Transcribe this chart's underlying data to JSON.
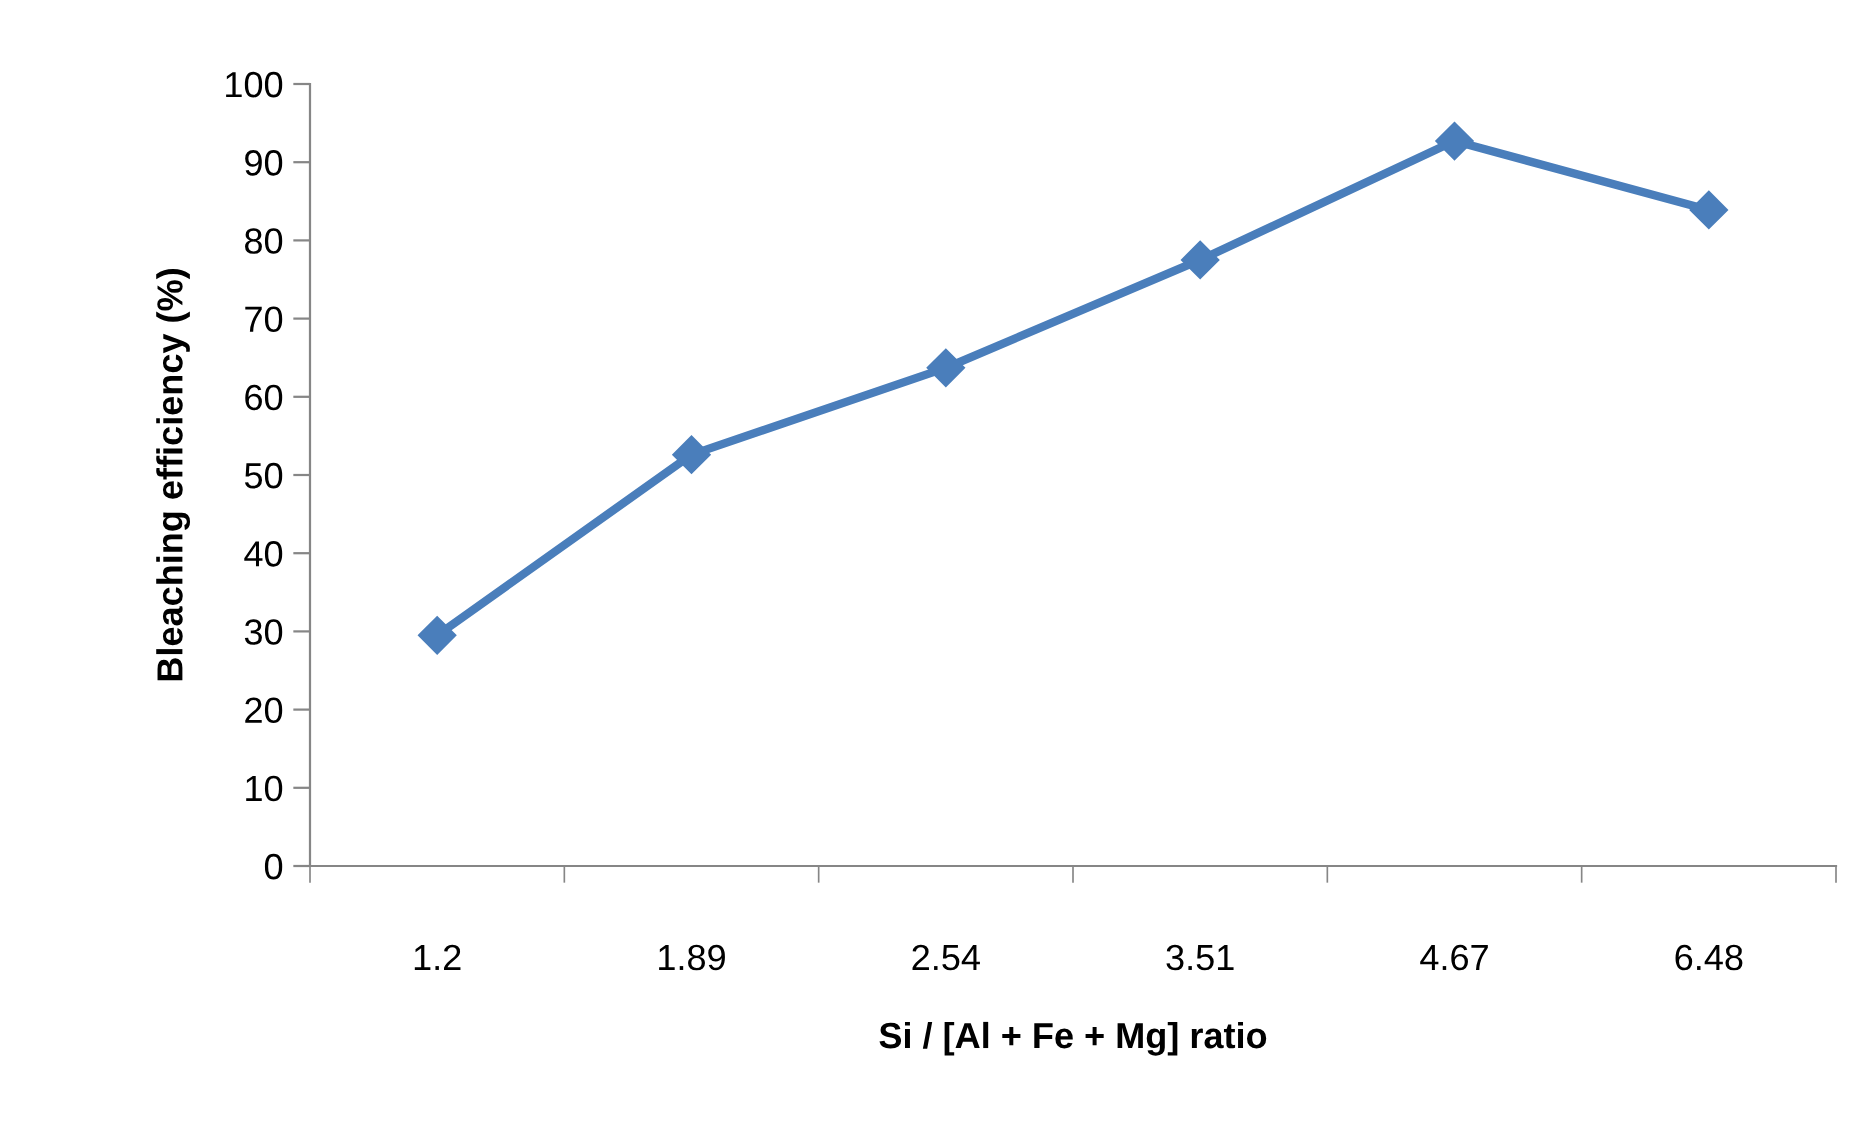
{
  "chart_data": {
    "type": "line",
    "xlabel": "Si / [Al + Fe + Mg] ratio",
    "ylabel": "Bleaching efficiency (%)",
    "categories": [
      "1.2",
      "1.89",
      "2.54",
      "3.51",
      "4.67",
      "6.48"
    ],
    "series": [
      {
        "color": "#4a7ebb",
        "values": [
          29.5,
          52.6,
          63.7,
          77.5,
          92.7,
          83.9
        ]
      }
    ],
    "ylim": [
      0,
      100
    ],
    "yticks": [
      0,
      10,
      20,
      30,
      40,
      50,
      60,
      70,
      80,
      90,
      100
    ],
    "marker": "diamond",
    "line_style": "solid",
    "grid": false
  }
}
